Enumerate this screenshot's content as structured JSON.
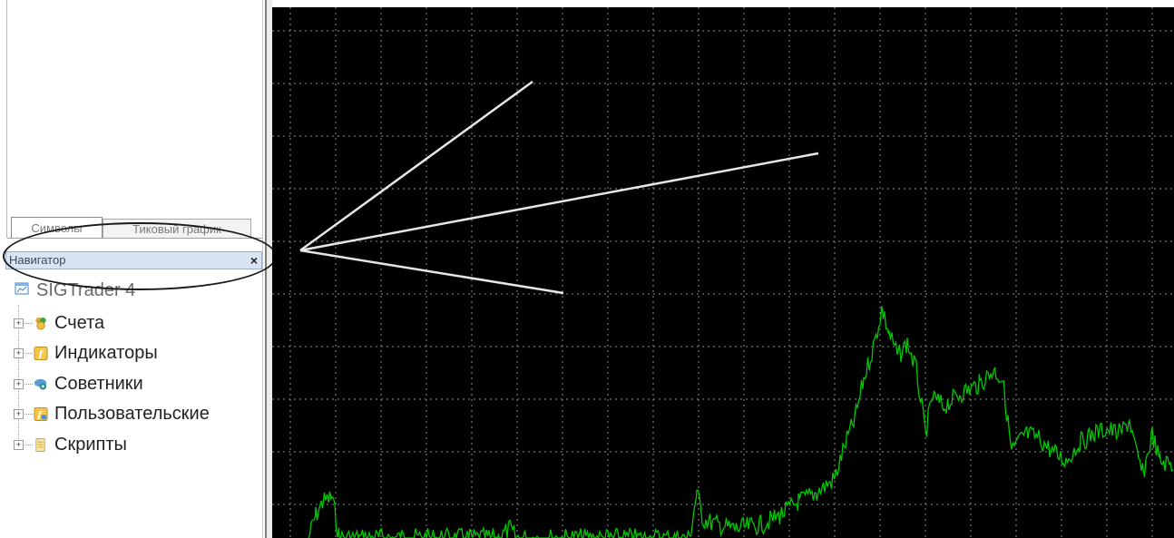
{
  "tabs": [
    {
      "label": "Символы"
    },
    {
      "label": "Тиковый график"
    }
  ],
  "navigator": {
    "title": "Навигатор",
    "close_glyph": "×",
    "root": {
      "label": "SIGTrader 4",
      "icon": "terminal-icon"
    },
    "items": [
      {
        "label": "Счета",
        "icon": "accounts-icon",
        "expander": "+"
      },
      {
        "label": "Индикаторы",
        "icon": "indicators-icon",
        "expander": "+"
      },
      {
        "label": "Советники",
        "icon": "expert-advisors-icon",
        "expander": "+"
      },
      {
        "label": "Пользовательские",
        "icon": "custom-indicators-icon",
        "expander": "+"
      },
      {
        "label": "Скрипты",
        "icon": "scripts-icon",
        "expander": "+"
      }
    ]
  },
  "chart": {
    "background": "#000000",
    "grid_color": "#8c8c8c",
    "line_color": "#00c800",
    "annotation_color": "#e6e6e6"
  }
}
